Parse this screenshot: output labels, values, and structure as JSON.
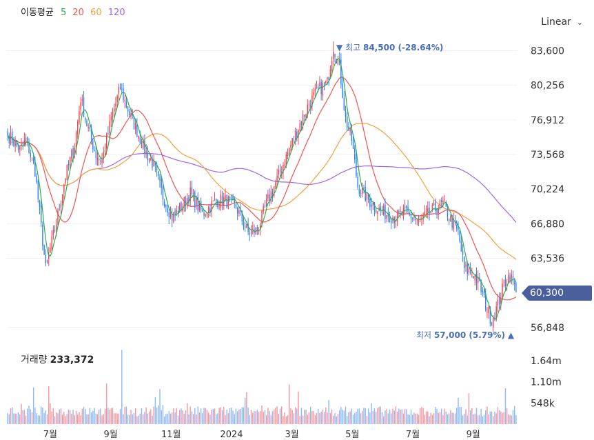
{
  "legend": {
    "title": "이동평균",
    "ma5": "5",
    "ma20": "20",
    "ma60": "60",
    "ma120": "120",
    "colors": {
      "ma5": "#2fa84f",
      "ma20": "#ef5350",
      "ma60": "#f4a03c",
      "ma120": "#a064e8"
    }
  },
  "scale_selector": {
    "label": "Linear",
    "icon": "chevron-down-icon"
  },
  "colors": {
    "up": "#f04452",
    "down": "#3182f6",
    "accent": "#4a5f9c",
    "annotation": "#4a6fb5"
  },
  "annotations": {
    "high_prefix": "최고",
    "high_value": "84,500 (-28.64%)",
    "low_prefix": "최저",
    "low_value": "57,000 (5.79%)"
  },
  "current_price": "60,300",
  "volume": {
    "label": "거래량",
    "value": "233,372"
  },
  "chart_data": {
    "type": "candlestick",
    "price_axis": {
      "ticks": [
        "83,600",
        "80,256",
        "76,912",
        "73,568",
        "70,224",
        "66,880",
        "63,536",
        "56,848"
      ],
      "ylim": [
        55500,
        85500
      ]
    },
    "volume_axis": {
      "ticks": [
        "1.64m",
        "1.10m",
        "548k"
      ],
      "ylim": [
        0,
        2050000
      ]
    },
    "time_axis": {
      "ticks": [
        "7월",
        "9월",
        "11월",
        "2024",
        "3월",
        "5월",
        "7월",
        "9월"
      ]
    },
    "moving_averages": [
      "5",
      "20",
      "60",
      "120"
    ],
    "close_anchors": [
      [
        0,
        75500
      ],
      [
        8,
        74000
      ],
      [
        12,
        75000
      ],
      [
        18,
        72000
      ],
      [
        25,
        62500
      ],
      [
        32,
        67000
      ],
      [
        38,
        71500
      ],
      [
        44,
        74500
      ],
      [
        48,
        79000
      ],
      [
        52,
        76500
      ],
      [
        58,
        73500
      ],
      [
        62,
        73000
      ],
      [
        68,
        77000
      ],
      [
        74,
        80000
      ],
      [
        80,
        77500
      ],
      [
        86,
        75500
      ],
      [
        90,
        74000
      ],
      [
        96,
        72500
      ],
      [
        102,
        69500
      ],
      [
        108,
        67500
      ],
      [
        114,
        68500
      ],
      [
        120,
        69800
      ],
      [
        128,
        67800
      ],
      [
        136,
        69000
      ],
      [
        142,
        69200
      ],
      [
        150,
        68500
      ],
      [
        158,
        66000
      ],
      [
        164,
        66200
      ],
      [
        170,
        68800
      ],
      [
        178,
        71500
      ],
      [
        186,
        74500
      ],
      [
        192,
        76500
      ],
      [
        198,
        78500
      ],
      [
        204,
        79800
      ],
      [
        210,
        80500
      ],
      [
        214,
        84000
      ],
      [
        218,
        82000
      ],
      [
        222,
        77000
      ],
      [
        226,
        75000
      ],
      [
        230,
        70500
      ],
      [
        238,
        69000
      ],
      [
        246,
        68000
      ],
      [
        254,
        67500
      ],
      [
        262,
        68000
      ],
      [
        270,
        67000
      ],
      [
        278,
        68000
      ],
      [
        286,
        68800
      ],
      [
        290,
        67500
      ],
      [
        296,
        66000
      ],
      [
        300,
        62500
      ],
      [
        306,
        62000
      ],
      [
        310,
        61000
      ],
      [
        314,
        59000
      ],
      [
        318,
        57500
      ],
      [
        322,
        59000
      ],
      [
        326,
        61000
      ],
      [
        330,
        62000
      ],
      [
        334,
        60300
      ]
    ],
    "high": 84500,
    "low": 57000,
    "last_close": 60300,
    "last_volume": 233372
  }
}
